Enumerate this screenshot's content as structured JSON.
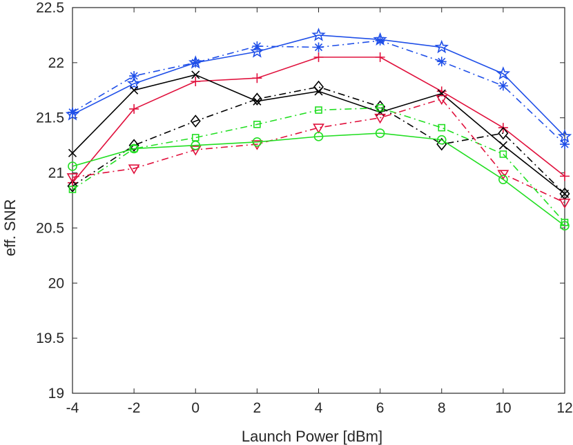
{
  "chart_data": {
    "type": "line",
    "xlabel": "Launch Power [dBm]",
    "ylabel": "eff. SNR",
    "xlim": [
      -4,
      12
    ],
    "ylim": [
      19,
      22.5
    ],
    "grid": false,
    "x": [
      -4,
      -2,
      0,
      2,
      4,
      6,
      8,
      10,
      12
    ],
    "x_tick_labels": [
      "-4",
      "-2",
      "0",
      "2",
      "4",
      "6",
      "8",
      "10",
      "12"
    ],
    "y_tick_labels": [
      "19",
      "19.5",
      "20",
      "20.5",
      "21",
      "21.5",
      "22",
      "22.5"
    ],
    "series": [
      {
        "color": "#1f4fe8",
        "line": "solid",
        "marker": "star",
        "values": [
          21.53,
          21.81,
          22.0,
          22.1,
          22.25,
          22.21,
          22.14,
          21.9,
          21.33
        ]
      },
      {
        "color": "#1f4fe8",
        "line": "dashdot",
        "marker": "asterisk",
        "values": [
          21.55,
          21.88,
          22.0,
          22.15,
          22.14,
          22.2,
          22.01,
          21.79,
          21.26
        ]
      },
      {
        "color": "#e0103c",
        "line": "solid",
        "marker": "plus",
        "values": [
          20.91,
          21.58,
          21.83,
          21.86,
          22.05,
          22.05,
          21.74,
          21.41,
          20.97
        ]
      },
      {
        "color": "#000000",
        "line": "solid",
        "marker": "x",
        "values": [
          21.18,
          21.75,
          21.89,
          21.65,
          21.74,
          21.55,
          21.72,
          21.25,
          20.81
        ]
      },
      {
        "color": "#000000",
        "line": "dashdot",
        "marker": "diamond",
        "values": [
          20.88,
          21.25,
          21.47,
          21.67,
          21.78,
          21.6,
          21.26,
          21.36,
          20.81
        ]
      },
      {
        "color": "#21de21",
        "line": "dashdot",
        "marker": "square",
        "values": [
          20.85,
          21.22,
          21.32,
          21.44,
          21.57,
          21.59,
          21.41,
          21.17,
          20.55
        ]
      },
      {
        "color": "#e0103c",
        "line": "dashdot",
        "marker": "triangle-down",
        "values": [
          20.96,
          21.04,
          21.21,
          21.26,
          21.41,
          21.5,
          21.67,
          20.99,
          20.73
        ]
      },
      {
        "color": "#21de21",
        "line": "solid",
        "marker": "circle",
        "values": [
          21.06,
          21.22,
          21.25,
          21.28,
          21.33,
          21.36,
          21.3,
          20.94,
          20.52
        ]
      }
    ]
  }
}
